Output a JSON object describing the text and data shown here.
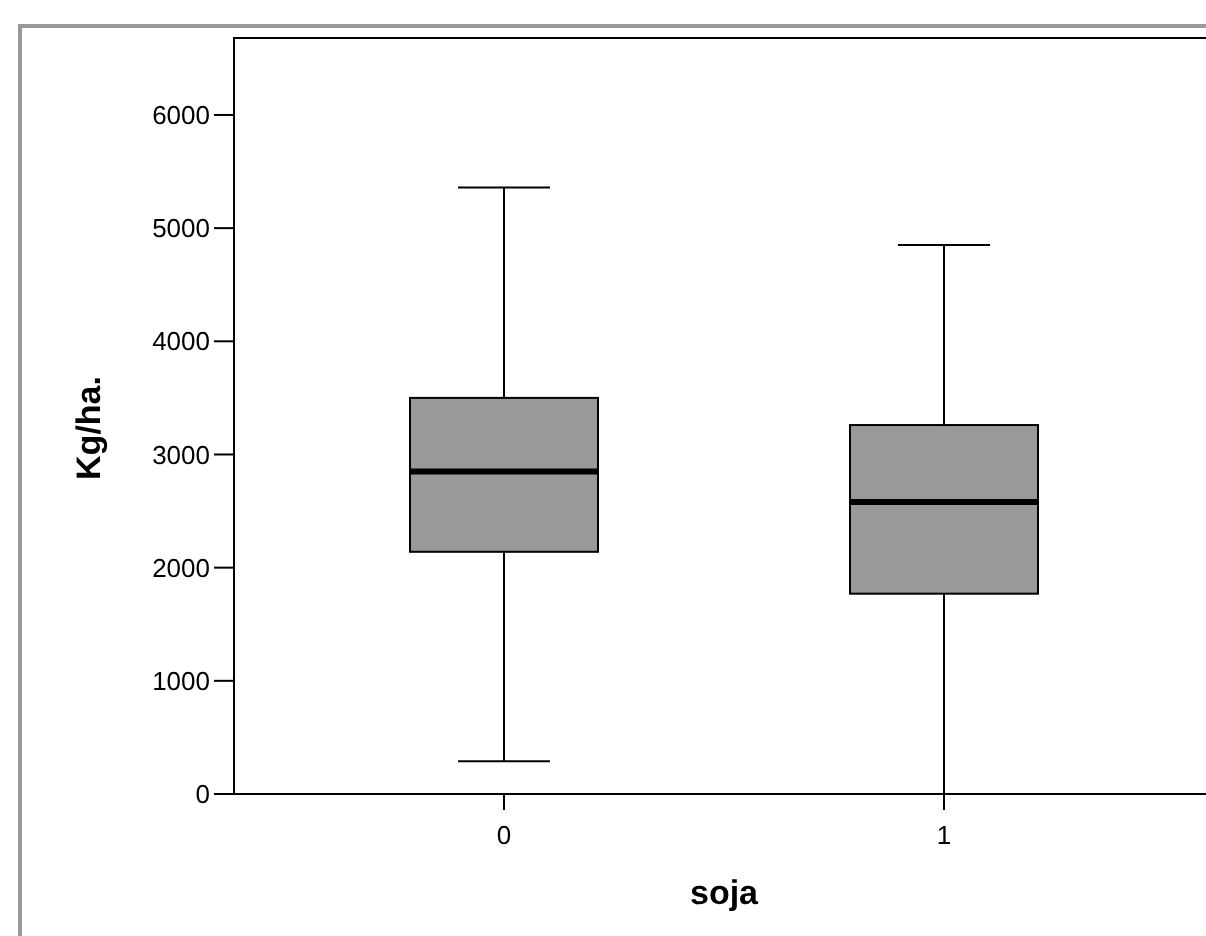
{
  "chart_data": {
    "type": "box",
    "xlabel": "soja",
    "ylabel": "Kg/ha.",
    "categories": [
      "0",
      "1"
    ],
    "color": "#999999",
    "boxes": [
      {
        "low": 290,
        "q1": 2140,
        "median": 2850,
        "q3": 3500,
        "high": 5360
      },
      {
        "low": 0,
        "q1": 1770,
        "median": 2580,
        "q3": 3260,
        "high": 4850
      }
    ],
    "ylim": [
      0,
      6680
    ],
    "yticks": [
      0,
      1000,
      2000,
      3000,
      4000,
      5000,
      6000
    ],
    "grid": false
  }
}
